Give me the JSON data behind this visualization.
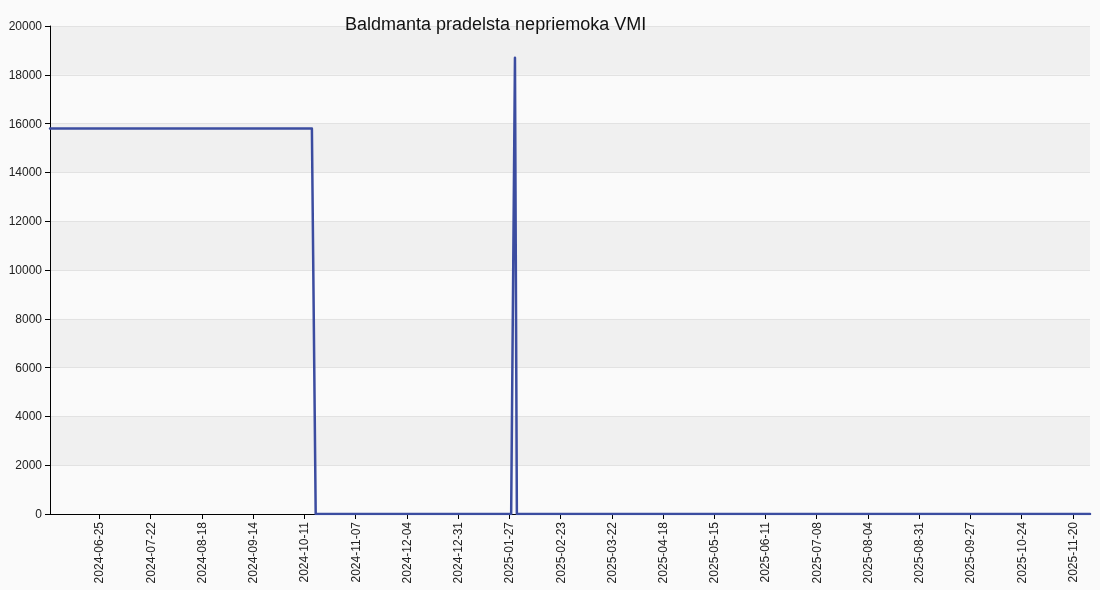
{
  "chart_data": {
    "type": "line",
    "title": "Baldmanta pradelsta nepriemoka VMI",
    "x": [
      "2024-05-30",
      "2024-10-15",
      "2024-10-17",
      "2025-01-28",
      "2025-01-30",
      "2025-01-31",
      "2025-11-29"
    ],
    "series": [
      {
        "color": "#3b4ca0",
        "values": [
          15800,
          15800,
          0,
          0,
          18700,
          0,
          0
        ]
      }
    ],
    "xlim": [
      "2024-05-30",
      "2025-11-29"
    ],
    "xticks": [
      "2024-06-25",
      "2024-07-22",
      "2024-08-18",
      "2024-09-14",
      "2024-10-11",
      "2024-11-07",
      "2024-12-04",
      "2024-12-31",
      "2025-01-27",
      "2025-02-23",
      "2025-03-22",
      "2025-04-18",
      "2025-05-15",
      "2025-06-11",
      "2025-07-08",
      "2025-08-04",
      "2025-08-31",
      "2025-09-27",
      "2025-10-24",
      "2025-11-20"
    ],
    "ylim": [
      0,
      20000
    ],
    "yticks": [
      0,
      2000,
      4000,
      6000,
      8000,
      10000,
      12000,
      14000,
      16000,
      18000,
      20000
    ],
    "grid": "y",
    "marker": "none"
  }
}
